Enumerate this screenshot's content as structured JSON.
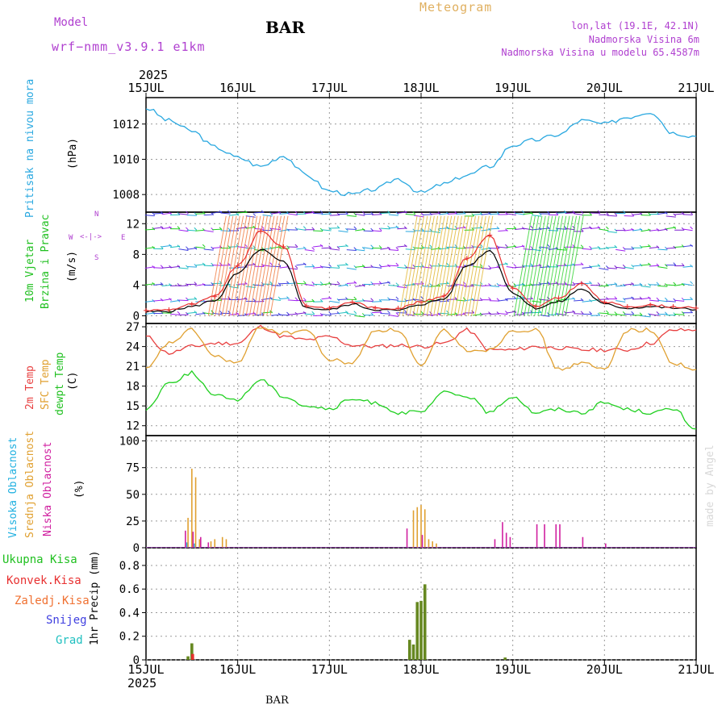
{
  "header": {
    "model_label": "Model",
    "model_value": "wrf−nmm_v3.9.1 e1km",
    "station": "BAR",
    "meteogram": "Meteogram",
    "coords": "lon,lat (19.1E, 42.1N)",
    "elevation": "Nadmorska Visina 6m",
    "model_elevation": "Nadmorska Visina u modelu 65.4587m",
    "year_top": "2025",
    "year_bottom": "2025",
    "footer_station": "BAR",
    "credit": "made by Angel"
  },
  "x_axis": {
    "labels": [
      "15JUL",
      "16JUL",
      "17JUL",
      "18JUL",
      "19JUL",
      "20JUL",
      "21JUL"
    ]
  },
  "panels": {
    "pressure": {
      "title": "Pritisak na nivou mora",
      "unit": "(hPa)",
      "ticks": [
        "1008",
        "1010",
        "1012"
      ]
    },
    "wind": {
      "title_1": "10m Vjetar",
      "title_2": "Brzina i Pravac",
      "unit": "(m/s)",
      "ticks": [
        "0",
        "4",
        "8",
        "12"
      ],
      "compass_n": "N",
      "compass_w": "W",
      "compass_e": "E",
      "compass_s": "S"
    },
    "temp": {
      "label_2m": "2m Temp",
      "label_sfc": "SFC Temp",
      "label_dew": "dewpt Temp",
      "unit": "(C)",
      "ticks": [
        "12",
        "15",
        "18",
        "21",
        "24",
        "27"
      ]
    },
    "cloud": {
      "label_high": "Visoka Oblacnost",
      "label_mid": "Srednja Oblacnost",
      "label_low": "Niska Oblacnost",
      "unit": "(%)",
      "ticks": [
        "0",
        "25",
        "50",
        "75",
        "100"
      ]
    },
    "precip": {
      "legend": [
        "Ukupna Kisa",
        "Konvek.Kisa",
        "Zaledj.Kisa",
        "Snijeg",
        "Grad"
      ],
      "unit": "1hr Precip (mm)",
      "ticks": [
        "0",
        "0.2",
        "0.4",
        "0.6",
        "0.8"
      ]
    }
  },
  "colors": {
    "pressure": "#29a8e0",
    "wind_speed": "#000000",
    "wind_gust": "#e83030",
    "temp_2m": "#e84040",
    "temp_sfc": "#e0a030",
    "temp_dew": "#20d020",
    "cloud_high": "#20b0e0",
    "cloud_mid": "#e0a030",
    "cloud_low": "#d020a0",
    "precip_total": "#668820",
    "precip_conv": "#e83030",
    "precip_frz": "#f07030",
    "precip_snow": "#4040e0",
    "precip_hail": "#20c0c0",
    "purple": "#b040d0"
  },
  "chart_data": [
    {
      "type": "line",
      "panel": "pressure",
      "title": "",
      "ylabel": "Pritisak na nivou mora (hPa)",
      "ylim": [
        1007,
        1013.5
      ],
      "x_hours": [
        0,
        6,
        12,
        18,
        24,
        30,
        36,
        42,
        48,
        54,
        60,
        66,
        72,
        78,
        84,
        90,
        96,
        102,
        108,
        114,
        120,
        126,
        132,
        138,
        144
      ],
      "series": [
        {
          "name": "",
          "values": [
            1012.9,
            1012.2,
            1011.6,
            1010.7,
            1010.1,
            1009.6,
            1010.2,
            1009.1,
            1008.2,
            1008.0,
            1008.3,
            1008.9,
            1008.1,
            1008.6,
            1009.1,
            1009.6,
            1010.8,
            1011.1,
            1011.4,
            1012.2,
            1012.0,
            1012.4,
            1012.7,
            1011.5,
            1011.3
          ]
        }
      ]
    },
    {
      "type": "line",
      "panel": "wind",
      "ylabel": "10m Vjetar Brzina i Pravac (m/s)",
      "ylim": [
        -1,
        13.5
      ],
      "x_hours": [
        0,
        6,
        12,
        18,
        24,
        30,
        36,
        42,
        48,
        54,
        60,
        66,
        72,
        78,
        84,
        90,
        96,
        102,
        108,
        114,
        120,
        126,
        132,
        138,
        144
      ],
      "series": [
        {
          "name": "",
          "values": [
            0.5,
            0.6,
            1.2,
            2.0,
            5.5,
            8.6,
            7.0,
            1.0,
            0.8,
            1.5,
            0.8,
            0.7,
            1.5,
            2.2,
            6.5,
            8.5,
            3.0,
            1.0,
            1.8,
            3.5,
            1.5,
            1.0,
            1.2,
            1.0,
            0.8
          ]
        },
        {
          "name": "",
          "values": [
            0.7,
            0.8,
            1.5,
            2.5,
            6.5,
            11.0,
            9.0,
            1.3,
            1.0,
            1.8,
            1.0,
            1.0,
            1.8,
            2.6,
            7.5,
            10.5,
            3.6,
            1.2,
            2.3,
            4.2,
            1.8,
            1.2,
            1.4,
            1.2,
            1.0
          ]
        }
      ]
    },
    {
      "type": "line",
      "panel": "temperature",
      "ylabel": "Temp (C)",
      "ylim": [
        10.5,
        27.5
      ],
      "x_hours": [
        0,
        6,
        12,
        18,
        24,
        30,
        36,
        42,
        48,
        54,
        60,
        66,
        72,
        78,
        84,
        90,
        96,
        102,
        108,
        114,
        120,
        126,
        132,
        138,
        144
      ],
      "series": [
        {
          "name": "2m Temp",
          "values": [
            25.5,
            23.0,
            24.0,
            24.5,
            24.5,
            27.0,
            25.5,
            25.0,
            25.5,
            24.2,
            24.0,
            24.2,
            24.0,
            24.5,
            26.5,
            23.5,
            23.5,
            24.0,
            23.8,
            23.5,
            23.5,
            23.5,
            24.5,
            26.5,
            26.5
          ]
        },
        {
          "name": "SFC Temp",
          "values": [
            20.5,
            24.5,
            26.5,
            22.5,
            21.5,
            27.0,
            26.0,
            26.5,
            22.0,
            21.5,
            26.5,
            26.5,
            21.0,
            26.5,
            23.5,
            23.5,
            26.5,
            26.5,
            20.5,
            21.5,
            20.5,
            26.5,
            26.5,
            21.5,
            20.5
          ]
        },
        {
          "name": "dewpt Temp",
          "values": [
            14.5,
            18.5,
            20.0,
            16.5,
            16.0,
            19.0,
            16.5,
            15.0,
            14.5,
            16.0,
            15.5,
            14.0,
            14.0,
            17.0,
            16.5,
            14.0,
            16.5,
            14.0,
            14.5,
            14.0,
            15.5,
            14.5,
            14.0,
            14.5,
            11.5
          ]
        }
      ]
    },
    {
      "type": "bar",
      "panel": "cloud",
      "ylabel": "Oblacnost (%)",
      "ylim": [
        0,
        105
      ],
      "series": [
        {
          "name": "Visoka Oblacnost",
          "x_hours": [
            11,
            13
          ],
          "values": [
            5,
            4
          ]
        },
        {
          "name": "Srednja Oblacnost",
          "x_hours": [
            11,
            12,
            13,
            14,
            17,
            18,
            20,
            21,
            70,
            71,
            72,
            73,
            74,
            75,
            76
          ],
          "values": [
            28,
            74,
            66,
            8,
            6,
            8,
            10,
            8,
            35,
            38,
            40,
            36,
            8,
            6,
            4
          ]
        },
        {
          "name": "Niska Oblacnost",
          "x_hours": [
            10,
            12,
            14,
            16,
            68,
            72,
            91,
            93,
            94,
            95,
            102,
            104,
            107,
            108,
            114,
            120
          ],
          "values": [
            16,
            15,
            10,
            5,
            18,
            12,
            8,
            24,
            14,
            10,
            22,
            22,
            22,
            22,
            10,
            4
          ]
        }
      ]
    },
    {
      "type": "bar",
      "panel": "precip",
      "ylabel": "1hr Precip (mm)",
      "ylim": [
        0,
        0.95
      ],
      "series": [
        {
          "name": "Ukupna Kisa",
          "x_hours": [
            11,
            12,
            69,
            70,
            71,
            72,
            73,
            94
          ],
          "values": [
            0.03,
            0.14,
            0.17,
            0.13,
            0.49,
            0.5,
            0.64,
            0.02
          ]
        },
        {
          "name": "Konvek.Kisa",
          "x_hours": [
            12
          ],
          "values": [
            0.05
          ]
        }
      ]
    }
  ]
}
